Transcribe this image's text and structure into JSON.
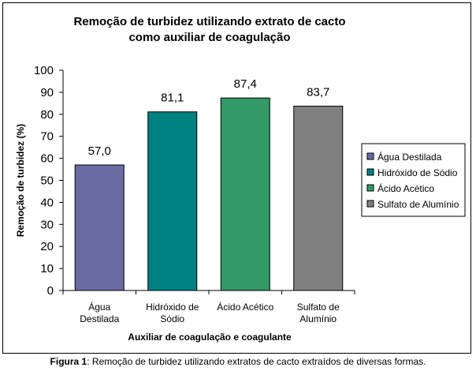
{
  "chart_data": {
    "type": "bar",
    "title_lines": [
      "Remoção de turbidez utilizando extrato de cacto",
      "como auxiliar de coagulação"
    ],
    "xlabel": "Auxiliar de coagulação e coagulante",
    "ylabel": "Remoção de turbidez (%)",
    "ylim": [
      0,
      100
    ],
    "yticks": [
      0,
      10,
      20,
      30,
      40,
      50,
      60,
      70,
      80,
      90,
      100
    ],
    "categories": [
      [
        "Água",
        "Destilada"
      ],
      [
        "Hidróxido de",
        "Sódio"
      ],
      [
        "Ácido Acético"
      ],
      [
        "Sulfato de",
        "Alumínio"
      ]
    ],
    "values": [
      57.0,
      81.1,
      87.4,
      83.7
    ],
    "value_labels": [
      "57,0",
      "81,1",
      "87,4",
      "83,7"
    ],
    "colors": [
      "#6B6BA3",
      "#008080",
      "#339966",
      "#808080"
    ],
    "legend": {
      "placement": "right",
      "entries": [
        "Água Destilada",
        "Hidróxido de Sódio",
        "Ácido Acético",
        "Sulfato de Alumínio"
      ]
    },
    "grid": false
  },
  "caption": {
    "prefix": "Figura 1",
    "text": ": Remoção de turbidez utilizando extratos de cacto extraídos de diversas formas."
  }
}
